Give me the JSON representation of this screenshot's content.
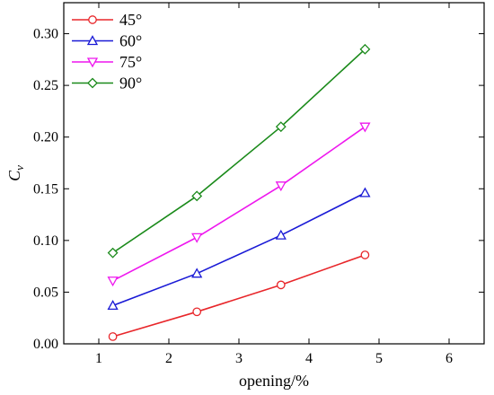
{
  "chart_data": {
    "type": "line",
    "xlabel": "opening/%",
    "ylabel_main": "C",
    "ylabel_sub": "v",
    "xlim": [
      0.5,
      6.5
    ],
    "ylim": [
      0.0,
      0.33
    ],
    "xticks": [
      1,
      2,
      3,
      4,
      5,
      6
    ],
    "yticks": [
      0.0,
      0.05,
      0.1,
      0.15,
      0.2,
      0.25,
      0.3
    ],
    "x_tick_labels": [
      "1",
      "2",
      "3",
      "4",
      "5",
      "6"
    ],
    "y_tick_labels": [
      "0.00",
      "0.05",
      "0.10",
      "0.15",
      "0.20",
      "0.25",
      "0.30"
    ],
    "grid": false,
    "legend_position": "top-left",
    "x": [
      1.2,
      2.4,
      3.6,
      4.8
    ],
    "series": [
      {
        "name": "45°",
        "color": "#e8262a",
        "marker": "circle",
        "values": [
          0.007,
          0.031,
          0.057,
          0.086
        ]
      },
      {
        "name": "60°",
        "color": "#1a1ad6",
        "marker": "triangle-up",
        "values": [
          0.037,
          0.068,
          0.105,
          0.146
        ]
      },
      {
        "name": "75°",
        "color": "#ee17ee",
        "marker": "triangle-down",
        "values": [
          0.061,
          0.103,
          0.153,
          0.21
        ]
      },
      {
        "name": "90°",
        "color": "#1a8a1a",
        "marker": "diamond",
        "values": [
          0.088,
          0.143,
          0.21,
          0.285
        ]
      }
    ]
  }
}
